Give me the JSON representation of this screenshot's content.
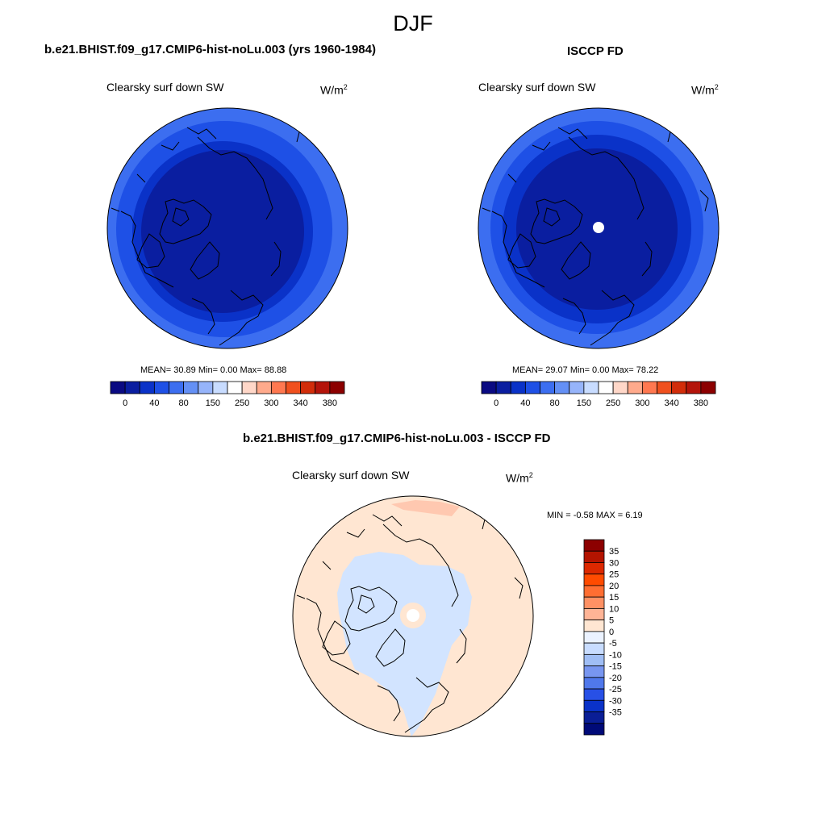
{
  "figure": {
    "title": "DJF"
  },
  "panels": [
    {
      "title": "b.e21.BHIST.f09_g17.CMIP6-hist-noLu.003 (yrs 1960-1984)",
      "variable": "Clearsky surf down SW",
      "unit_base": "W/m",
      "unit_sup": "2",
      "stats": "MEAN=  30.89  Min=   0.00  Max=  88.88",
      "mean": 30.89,
      "min": 0.0,
      "max": 88.88,
      "colorbar": {
        "colors": [
          "#0a0a82",
          "#0a1ea0",
          "#0a32c8",
          "#1e50e6",
          "#3c6ef0",
          "#6490f5",
          "#96b4fa",
          "#c8dcff",
          "#ffffff",
          "#ffd7c8",
          "#ffaa8c",
          "#ff7850",
          "#f0501e",
          "#d22d0a",
          "#b4140a",
          "#8c0000"
        ],
        "ticks": [
          "0",
          "40",
          "80",
          "150",
          "250",
          "300",
          "340",
          "380"
        ]
      }
    },
    {
      "title": "ISCCP FD",
      "variable": "Clearsky surf down SW",
      "unit_base": "W/m",
      "unit_sup": "2",
      "stats": "MEAN=  29.07  Min=   0.00  Max=  78.22",
      "mean": 29.07,
      "min": 0.0,
      "max": 78.22,
      "colorbar": {
        "colors": [
          "#0a0a82",
          "#0a1ea0",
          "#0a32c8",
          "#1e50e6",
          "#3c6ef0",
          "#6490f5",
          "#96b4fa",
          "#c8dcff",
          "#ffffff",
          "#ffd7c8",
          "#ffaa8c",
          "#ff7850",
          "#f0501e",
          "#d22d0a",
          "#b4140a",
          "#8c0000"
        ],
        "ticks": [
          "0",
          "40",
          "80",
          "150",
          "250",
          "300",
          "340",
          "380"
        ]
      }
    },
    {
      "title": "b.e21.BHIST.f09_g17.CMIP6-hist-noLu.003 - ISCCP FD",
      "variable": "Clearsky surf down SW",
      "unit_base": "W/m",
      "unit_sup": "2",
      "stats": "MIN =  -0.58 MAX =   6.19",
      "min": -0.58,
      "max": 6.19,
      "colorbar": {
        "colors": [
          "#8c0000",
          "#b41400",
          "#dc2800",
          "#ff4b00",
          "#ff6e32",
          "#ff9164",
          "#ffb496",
          "#ffe6d2",
          "#ebf2ff",
          "#c8dcff",
          "#a0bef5",
          "#7896f0",
          "#5078eb",
          "#2850e6",
          "#0a32c8",
          "#0a1e96",
          "#000a78"
        ],
        "labels": [
          "35",
          "30",
          "25",
          "20",
          "15",
          "10",
          "5",
          "0",
          "-5",
          "-10",
          "-15",
          "-20",
          "-25",
          "-30",
          "-35"
        ]
      }
    }
  ]
}
